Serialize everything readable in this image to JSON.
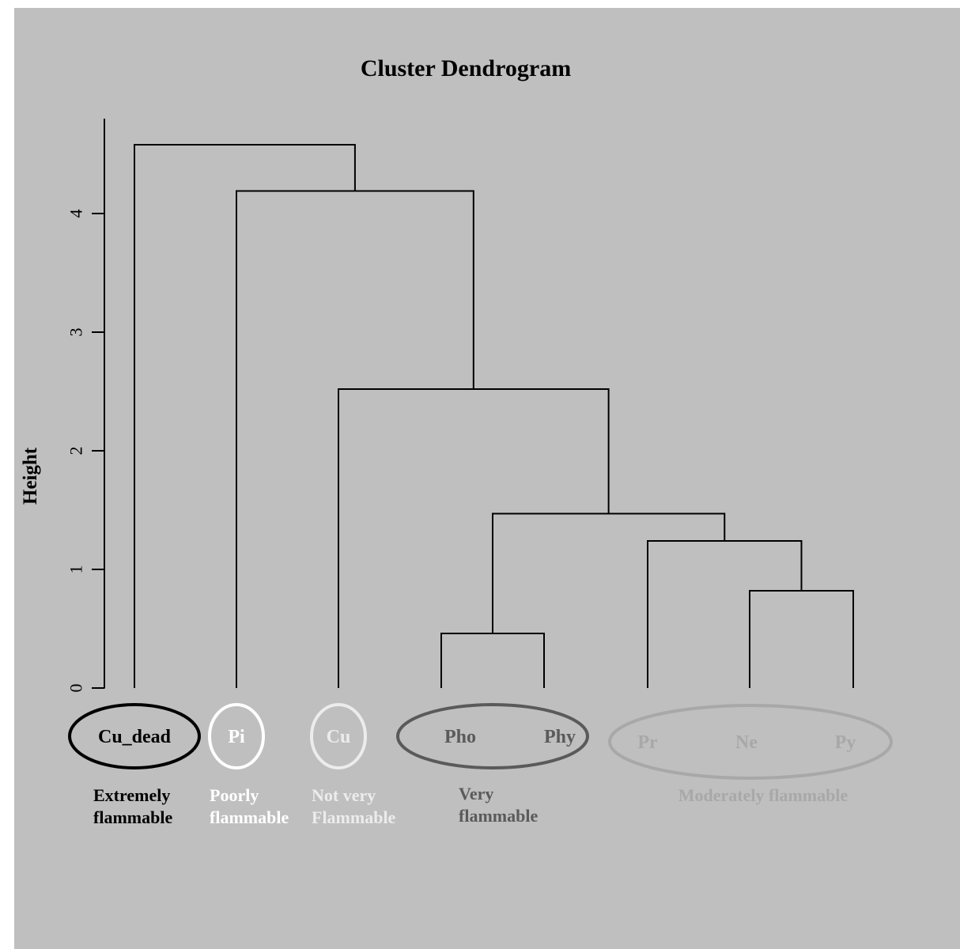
{
  "chart_data": {
    "type": "dendrogram",
    "title": "Cluster Dendrogram",
    "ylabel": "Height",
    "ylim": [
      0,
      4.8
    ],
    "y_ticks": [
      0,
      1,
      2,
      3,
      4
    ],
    "leaves": [
      "Cu_dead",
      "Pi",
      "Cu",
      "Pho",
      "Phy",
      "Pr",
      "Ne",
      "Py"
    ],
    "merges": [
      {
        "left": "Pho",
        "right": "Phy",
        "height": 0.46
      },
      {
        "left": "Ne",
        "right": "Py",
        "height": 0.82
      },
      {
        "left": "Pr",
        "right": "Ne+Py",
        "height": 1.24
      },
      {
        "left": "Pho+Phy",
        "right": "Pr+Ne+Py",
        "height": 1.47
      },
      {
        "left": "Cu",
        "right": "Pho+Phy+Pr+Ne+Py",
        "height": 2.52
      },
      {
        "left": "Pi",
        "right": "Cu+Pho+Phy+Pr+Ne+Py",
        "height": 4.19
      },
      {
        "left": "Cu_dead",
        "right": "Pi+Cu+Pho+Phy+Pr+Ne+Py",
        "height": 4.58
      }
    ],
    "groups": [
      {
        "members": [
          "Cu_dead"
        ],
        "label_lines": [
          "Extremely",
          "flammable"
        ],
        "color": "#000000"
      },
      {
        "members": [
          "Pi"
        ],
        "label_lines": [
          "Poorly",
          "flammable"
        ],
        "color": "#ffffff"
      },
      {
        "members": [
          "Cu"
        ],
        "label_lines": [
          "Not very",
          "Flammable"
        ],
        "color": "#ececec"
      },
      {
        "members": [
          "Pho",
          "Phy"
        ],
        "label_lines": [
          "Very",
          "flammable"
        ],
        "color": "#5a5a5a"
      },
      {
        "members": [
          "Pr",
          "Ne",
          "Py"
        ],
        "label_lines": [
          "Moderately flammable"
        ],
        "color": "#a8a8a8"
      }
    ]
  },
  "colors": {
    "background": "#bfbfbf",
    "lines": "#000000"
  }
}
